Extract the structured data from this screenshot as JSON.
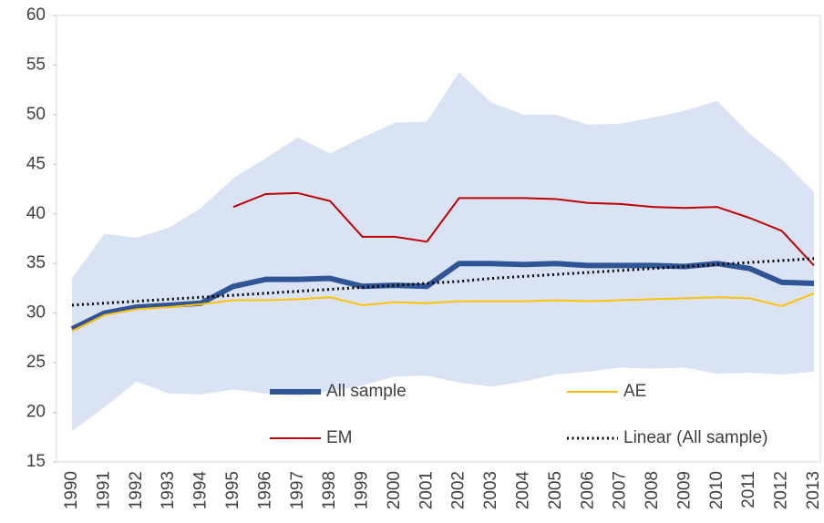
{
  "chart_data": {
    "type": "line",
    "x": [
      1990,
      1991,
      1992,
      1993,
      1994,
      1995,
      1996,
      1997,
      1998,
      1999,
      2000,
      2001,
      2002,
      2003,
      2004,
      2005,
      2006,
      2007,
      2008,
      2009,
      2010,
      2011,
      2012,
      2013
    ],
    "xlim": [
      1990,
      2013
    ],
    "ylim": [
      15,
      60
    ],
    "yticks": [
      15,
      20,
      25,
      30,
      35,
      40,
      45,
      50,
      55,
      60
    ],
    "legend": "bottom",
    "band": {
      "color": "#dae3f3",
      "upper": [
        33.5,
        38,
        37.6,
        38.6,
        40.6,
        43.6,
        45.6,
        47.7,
        46.1,
        47.7,
        49.2,
        49.3,
        54.3,
        51.2,
        50,
        50,
        49,
        49.1,
        49.7,
        50.4,
        51.4,
        48.1,
        45.5,
        42.2
      ],
      "lower": [
        18.1,
        20.5,
        23.1,
        21.9,
        21.8,
        22.3,
        21.9,
        21.7,
        22.1,
        22.7,
        23.6,
        23.7,
        23,
        22.6,
        23.1,
        23.8,
        24.1,
        24.5,
        24.4,
        24.5,
        23.9,
        24,
        23.8,
        24.1
      ]
    },
    "series": [
      {
        "name": "All sample",
        "color": "#2f5597",
        "style": "thick",
        "values": [
          28.4,
          30,
          30.6,
          30.8,
          31,
          32.7,
          33.4,
          33.4,
          33.5,
          32.7,
          32.8,
          32.7,
          35,
          35,
          34.9,
          35,
          34.8,
          34.8,
          34.8,
          34.7,
          35,
          34.5,
          33.1,
          33
        ]
      },
      {
        "name": "AE",
        "color": "#ffc000",
        "style": "solid",
        "values": [
          28.2,
          29.8,
          30.4,
          30.6,
          30.9,
          31.3,
          31.3,
          31.4,
          31.6,
          30.8,
          31.1,
          31,
          31.2,
          31.2,
          31.2,
          31.3,
          31.2,
          31.3,
          31.4,
          31.5,
          31.6,
          31.5,
          30.7,
          32
        ]
      },
      {
        "name": "EM",
        "color": "#c00000",
        "style": "solid",
        "values": [
          null,
          null,
          null,
          null,
          null,
          40.7,
          42,
          42.1,
          41.3,
          37.7,
          37.7,
          37.2,
          41.6,
          41.6,
          41.6,
          41.5,
          41.1,
          41,
          40.7,
          40.6,
          40.7,
          39.6,
          38.3,
          34.8
        ]
      },
      {
        "name": "Linear (All sample)",
        "color": "#000000",
        "style": "dotted",
        "values": [
          30.8,
          31,
          31.2,
          31.4,
          31.6,
          31.8,
          32,
          32.2,
          32.4,
          32.6,
          32.8,
          33,
          33.2,
          33.5,
          33.7,
          33.9,
          34.1,
          34.3,
          34.5,
          34.7,
          34.9,
          35.1,
          35.3,
          35.5
        ]
      }
    ]
  }
}
